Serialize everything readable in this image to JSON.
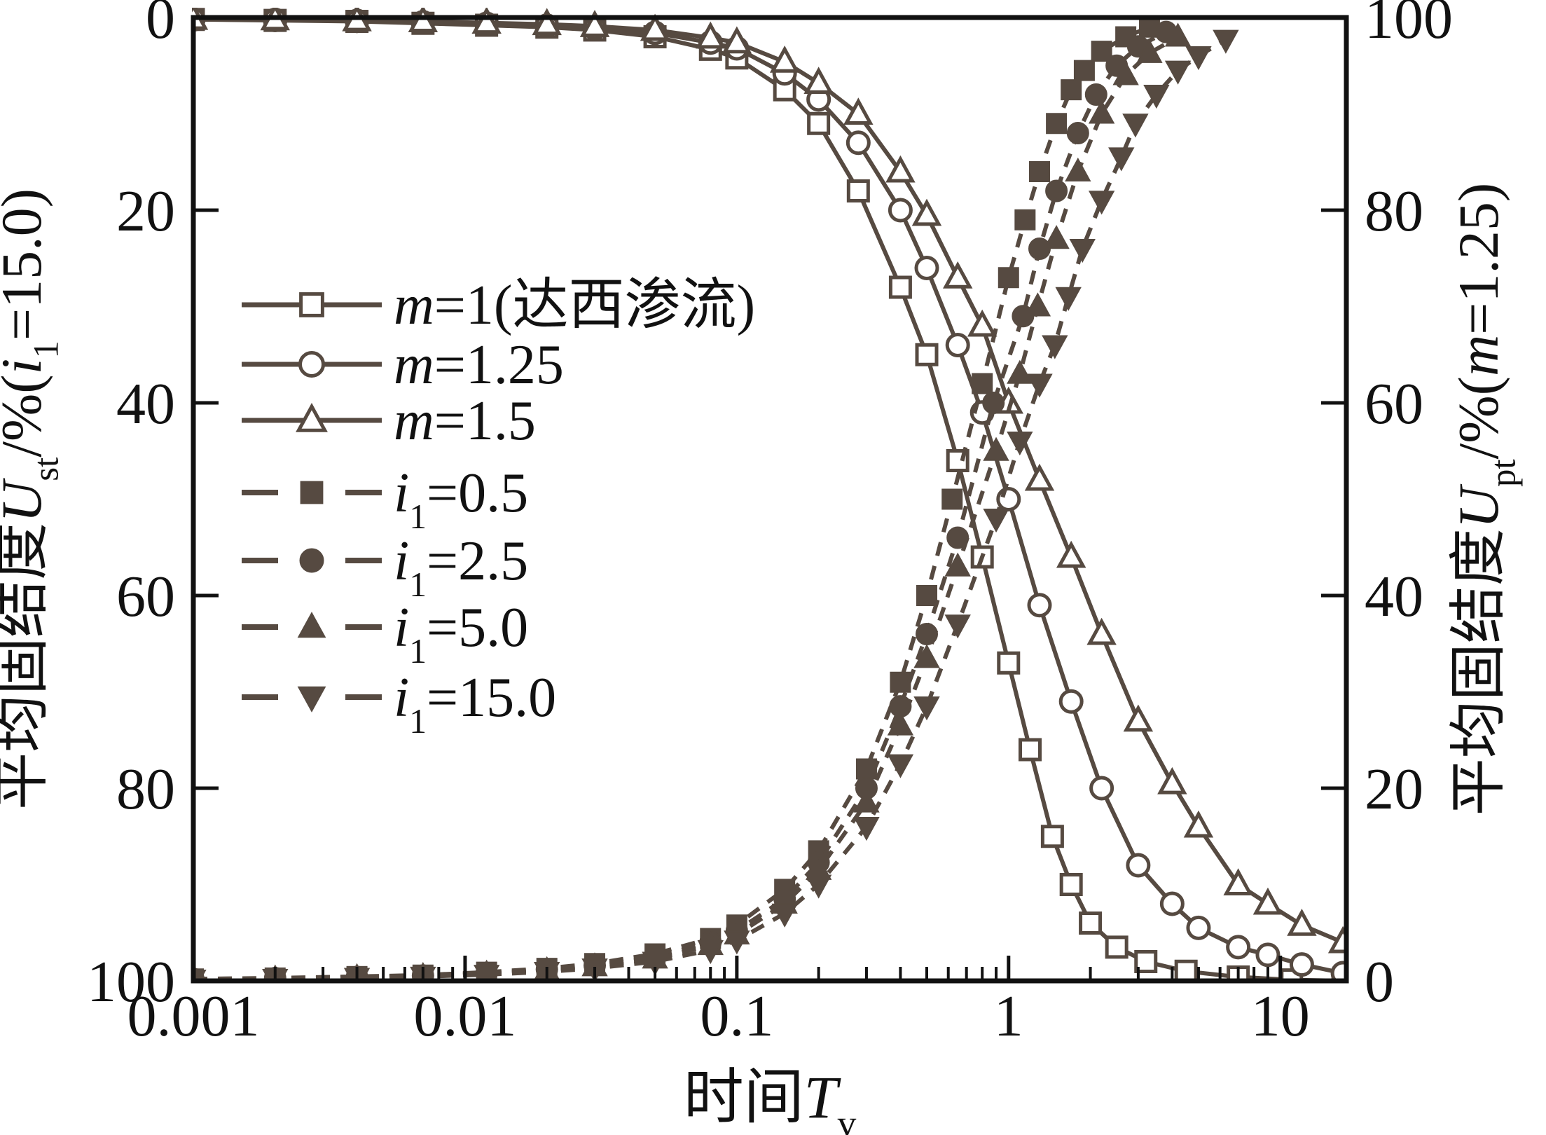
{
  "figure": {
    "background": "#ffffff",
    "curve_color": "#564a41",
    "axis_color": "#111111"
  },
  "chart_data": {
    "type": "line",
    "title": "",
    "x_axis": {
      "scale": "log",
      "range": [
        0.001,
        17.5
      ],
      "major_ticks": [
        0.001,
        0.01,
        0.1,
        1,
        10
      ],
      "major_tick_labels": [
        "0.001",
        "0.01",
        "0.1",
        "1",
        "10"
      ],
      "label_runs": [
        {
          "t": "时间"
        },
        {
          "t": "T",
          "i": true
        },
        {
          "t": "v",
          "sub": true
        }
      ]
    },
    "y_axis_left": {
      "range": [
        0,
        100
      ],
      "inverted": true,
      "ticks": [
        0,
        20,
        40,
        60,
        80,
        100
      ],
      "tick_labels": [
        "0",
        "20",
        "40",
        "60",
        "80",
        "100"
      ],
      "label_runs": [
        {
          "t": "平均固结度"
        },
        {
          "t": "U",
          "i": true
        },
        {
          "t": "st",
          "sub": true
        },
        {
          "t": "/%("
        },
        {
          "t": "i",
          "i": true
        },
        {
          "t": "1",
          "sub": true
        },
        {
          "t": "=15.0)"
        }
      ]
    },
    "y_axis_right": {
      "range": [
        0,
        100
      ],
      "inverted": false,
      "ticks": [
        0,
        20,
        40,
        60,
        80,
        100
      ],
      "tick_labels": [
        "0",
        "20",
        "40",
        "60",
        "80",
        "100"
      ],
      "label_runs": [
        {
          "t": "平均固结度"
        },
        {
          "t": "U",
          "i": true
        },
        {
          "t": "pt",
          "sub": true
        },
        {
          "t": "/%("
        },
        {
          "t": "m",
          "i": true
        },
        {
          "t": "=1.25)"
        }
      ]
    },
    "legend": {
      "position": "upper-left-inside",
      "entries_note": "entries follow series order"
    },
    "series": [
      {
        "id": "m1",
        "legend_runs": [
          {
            "t": "m",
            "i": true
          },
          {
            "t": "=1(达西渗流)"
          }
        ],
        "axis": "left",
        "line": "solid",
        "marker": "square",
        "fill": "open",
        "points": [
          [
            0.001,
            0.2
          ],
          [
            0.002,
            0.3
          ],
          [
            0.004,
            0.4
          ],
          [
            0.007,
            0.6
          ],
          [
            0.012,
            0.8
          ],
          [
            0.02,
            1.0
          ],
          [
            0.03,
            1.3
          ],
          [
            0.05,
            2.0
          ],
          [
            0.08,
            3.3
          ],
          [
            0.1,
            4.2
          ],
          [
            0.15,
            7.5
          ],
          [
            0.2,
            11
          ],
          [
            0.28,
            18
          ],
          [
            0.4,
            28
          ],
          [
            0.5,
            35
          ],
          [
            0.65,
            46
          ],
          [
            0.8,
            56
          ],
          [
            1.0,
            67
          ],
          [
            1.2,
            76
          ],
          [
            1.45,
            85
          ],
          [
            1.7,
            90
          ],
          [
            2.0,
            94
          ],
          [
            2.5,
            96.5
          ],
          [
            3.2,
            98
          ],
          [
            4.5,
            99
          ],
          [
            7,
            99.6
          ],
          [
            11,
            99.9
          ],
          [
            17,
            100
          ]
        ]
      },
      {
        "id": "m125",
        "legend_runs": [
          {
            "t": "m",
            "i": true
          },
          {
            "t": "=1.25"
          }
        ],
        "axis": "left",
        "line": "solid",
        "marker": "circle",
        "fill": "open",
        "points": [
          [
            0.001,
            0.2
          ],
          [
            0.002,
            0.25
          ],
          [
            0.004,
            0.35
          ],
          [
            0.007,
            0.5
          ],
          [
            0.012,
            0.65
          ],
          [
            0.02,
            0.85
          ],
          [
            0.03,
            1.1
          ],
          [
            0.05,
            1.6
          ],
          [
            0.08,
            2.6
          ],
          [
            0.1,
            3.2
          ],
          [
            0.15,
            5.8
          ],
          [
            0.2,
            8.5
          ],
          [
            0.28,
            13
          ],
          [
            0.4,
            20
          ],
          [
            0.5,
            26
          ],
          [
            0.65,
            34
          ],
          [
            0.8,
            41
          ],
          [
            1.0,
            50
          ],
          [
            1.3,
            61
          ],
          [
            1.7,
            71
          ],
          [
            2.2,
            80
          ],
          [
            3,
            88
          ],
          [
            4,
            92
          ],
          [
            5,
            94.5
          ],
          [
            7,
            96.5
          ],
          [
            9,
            97.3
          ],
          [
            12,
            98.3
          ],
          [
            17,
            99.2
          ]
        ]
      },
      {
        "id": "m15",
        "legend_runs": [
          {
            "t": "m",
            "i": true
          },
          {
            "t": "=1.5"
          }
        ],
        "axis": "left",
        "line": "solid",
        "marker": "triangle-up",
        "fill": "open",
        "points": [
          [
            0.001,
            0.15
          ],
          [
            0.002,
            0.2
          ],
          [
            0.004,
            0.3
          ],
          [
            0.007,
            0.4
          ],
          [
            0.012,
            0.55
          ],
          [
            0.02,
            0.7
          ],
          [
            0.03,
            0.9
          ],
          [
            0.05,
            1.3
          ],
          [
            0.08,
            2.1
          ],
          [
            0.1,
            2.6
          ],
          [
            0.15,
            4.6
          ],
          [
            0.2,
            6.8
          ],
          [
            0.28,
            10
          ],
          [
            0.4,
            16
          ],
          [
            0.5,
            20.5
          ],
          [
            0.65,
            27
          ],
          [
            0.8,
            32
          ],
          [
            1.0,
            40
          ],
          [
            1.3,
            48
          ],
          [
            1.7,
            56
          ],
          [
            2.2,
            64
          ],
          [
            3,
            73
          ],
          [
            4,
            79.5
          ],
          [
            5,
            84
          ],
          [
            7,
            90
          ],
          [
            9,
            92
          ],
          [
            12,
            94.2
          ],
          [
            17,
            96
          ]
        ]
      },
      {
        "id": "i05",
        "legend_runs": [
          {
            "t": "i",
            "i": true
          },
          {
            "t": "1",
            "sub": true
          },
          {
            "t": "=0.5"
          }
        ],
        "axis": "right",
        "line": "dashed",
        "marker": "square",
        "fill": "solid",
        "points": [
          [
            0.001,
            0.2
          ],
          [
            0.002,
            0.3
          ],
          [
            0.004,
            0.45
          ],
          [
            0.007,
            0.6
          ],
          [
            0.012,
            0.9
          ],
          [
            0.02,
            1.3
          ],
          [
            0.03,
            1.8
          ],
          [
            0.05,
            2.8
          ],
          [
            0.08,
            4.4
          ],
          [
            0.1,
            5.8
          ],
          [
            0.15,
            9.5
          ],
          [
            0.2,
            13.5
          ],
          [
            0.3,
            22
          ],
          [
            0.4,
            31
          ],
          [
            0.5,
            40
          ],
          [
            0.62,
            50
          ],
          [
            0.8,
            62
          ],
          [
            1.0,
            73
          ],
          [
            1.15,
            79
          ],
          [
            1.3,
            84
          ],
          [
            1.5,
            89
          ],
          [
            1.7,
            92.5
          ],
          [
            1.9,
            94.5
          ],
          [
            2.2,
            96.5
          ],
          [
            2.7,
            98
          ],
          [
            3.3,
            99
          ]
        ]
      },
      {
        "id": "i25",
        "legend_runs": [
          {
            "t": "i",
            "i": true
          },
          {
            "t": "1",
            "sub": true
          },
          {
            "t": "=2.5"
          }
        ],
        "axis": "right",
        "line": "dashed",
        "marker": "circle",
        "fill": "solid",
        "points": [
          [
            0.001,
            0.2
          ],
          [
            0.002,
            0.28
          ],
          [
            0.004,
            0.4
          ],
          [
            0.007,
            0.55
          ],
          [
            0.012,
            0.8
          ],
          [
            0.02,
            1.2
          ],
          [
            0.03,
            1.6
          ],
          [
            0.05,
            2.5
          ],
          [
            0.08,
            4.0
          ],
          [
            0.1,
            5.2
          ],
          [
            0.15,
            8.5
          ],
          [
            0.2,
            12.3
          ],
          [
            0.3,
            20
          ],
          [
            0.4,
            28.5
          ],
          [
            0.5,
            36
          ],
          [
            0.65,
            46
          ],
          [
            0.88,
            60
          ],
          [
            1.13,
            69
          ],
          [
            1.3,
            76
          ],
          [
            1.5,
            82
          ],
          [
            1.8,
            88
          ],
          [
            2.1,
            92
          ],
          [
            2.5,
            95
          ],
          [
            3,
            97
          ],
          [
            3.8,
            98.5
          ]
        ]
      },
      {
        "id": "i50",
        "legend_runs": [
          {
            "t": "i",
            "i": true
          },
          {
            "t": "1",
            "sub": true
          },
          {
            "t": "=5.0"
          }
        ],
        "axis": "right",
        "line": "dashed",
        "marker": "triangle-up",
        "fill": "solid",
        "points": [
          [
            0.001,
            0.18
          ],
          [
            0.002,
            0.25
          ],
          [
            0.004,
            0.38
          ],
          [
            0.007,
            0.5
          ],
          [
            0.012,
            0.75
          ],
          [
            0.02,
            1.1
          ],
          [
            0.03,
            1.5
          ],
          [
            0.05,
            2.3
          ],
          [
            0.08,
            3.7
          ],
          [
            0.1,
            4.8
          ],
          [
            0.15,
            8
          ],
          [
            0.2,
            11.5
          ],
          [
            0.3,
            18.5
          ],
          [
            0.4,
            26.5
          ],
          [
            0.5,
            33.5
          ],
          [
            0.65,
            43
          ],
          [
            0.9,
            55
          ],
          [
            1.1,
            63
          ],
          [
            1.28,
            70
          ],
          [
            1.5,
            77
          ],
          [
            1.8,
            84
          ],
          [
            2.2,
            90
          ],
          [
            2.7,
            94
          ],
          [
            3.3,
            96.3
          ],
          [
            4.2,
            98
          ]
        ]
      },
      {
        "id": "i150",
        "legend_runs": [
          {
            "t": "i",
            "i": true
          },
          {
            "t": "1",
            "sub": true
          },
          {
            "t": "=15.0"
          }
        ],
        "axis": "right",
        "line": "dashed",
        "marker": "triangle-down",
        "fill": "solid",
        "points": [
          [
            0.001,
            0.15
          ],
          [
            0.002,
            0.22
          ],
          [
            0.004,
            0.33
          ],
          [
            0.007,
            0.45
          ],
          [
            0.012,
            0.65
          ],
          [
            0.02,
            0.95
          ],
          [
            0.03,
            1.3
          ],
          [
            0.05,
            2.0
          ],
          [
            0.08,
            3.2
          ],
          [
            0.1,
            4.2
          ],
          [
            0.15,
            7
          ],
          [
            0.2,
            10
          ],
          [
            0.3,
            16
          ],
          [
            0.4,
            22.5
          ],
          [
            0.5,
            28.5
          ],
          [
            0.65,
            37
          ],
          [
            0.9,
            48
          ],
          [
            1.1,
            56
          ],
          [
            1.3,
            62
          ],
          [
            1.48,
            66
          ],
          [
            1.66,
            71
          ],
          [
            1.87,
            76
          ],
          [
            2.2,
            81
          ],
          [
            2.6,
            85.5
          ],
          [
            2.93,
            89
          ],
          [
            3.5,
            92
          ],
          [
            4.2,
            94.5
          ],
          [
            5,
            96
          ],
          [
            6.3,
            97.7
          ]
        ]
      }
    ]
  }
}
